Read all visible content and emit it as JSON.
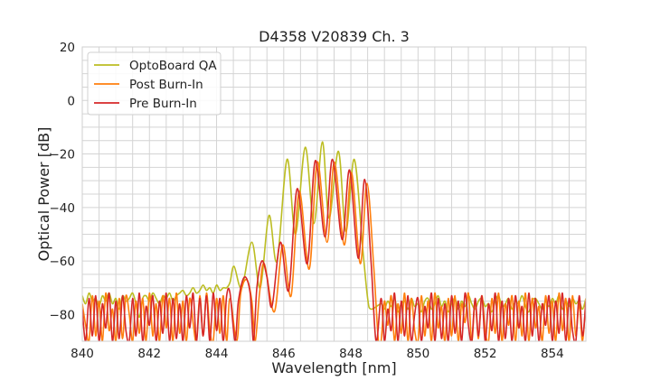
{
  "chart_data": {
    "type": "line",
    "title": "D4358 V20839 Ch. 3",
    "xlabel": "Wavelength [nm]",
    "ylabel": "Optical Power [dB]",
    "xlim": [
      840,
      855
    ],
    "ylim": [
      -90,
      20
    ],
    "xticks": [
      840,
      842,
      844,
      846,
      848,
      850,
      852,
      854
    ],
    "yticks": [
      20,
      0,
      -20,
      -40,
      -60,
      -80
    ],
    "xtick_labels": [
      "840",
      "842",
      "844",
      "846",
      "848",
      "850",
      "852",
      "854"
    ],
    "ytick_labels": [
      "20",
      "0",
      "−20",
      "−40",
      "−60",
      "−80"
    ],
    "grid": true,
    "minor_grid": true,
    "legend_position": "top-left",
    "x_noise_left": [
      840.0,
      840.1,
      840.2,
      840.3,
      840.4,
      840.5,
      840.6,
      840.7,
      840.8,
      840.9,
      841.0,
      841.1,
      841.2,
      841.3,
      841.4,
      841.5,
      841.6,
      841.7,
      841.8,
      841.9,
      842.0,
      842.1,
      842.2,
      842.3,
      842.4,
      842.5,
      842.6,
      842.7,
      842.8,
      842.9,
      843.0,
      843.1,
      843.2,
      843.3,
      843.4,
      843.5,
      843.6,
      843.7,
      843.8,
      843.9,
      844.0,
      844.1,
      844.2,
      844.3,
      844.4
    ],
    "x_noise_right": [
      848.9,
      849.0,
      849.1,
      849.2,
      849.3,
      849.4,
      849.5,
      849.6,
      849.7,
      849.8,
      849.9,
      850.0,
      850.1,
      850.2,
      850.3,
      850.4,
      850.5,
      850.6,
      850.7,
      850.8,
      850.9,
      851.0,
      851.1,
      851.2,
      851.3,
      851.4,
      851.5,
      851.6,
      851.7,
      851.8,
      851.9,
      852.0,
      852.1,
      852.2,
      852.3,
      852.4,
      852.5,
      852.6,
      852.7,
      852.8,
      852.9,
      853.0,
      853.1,
      853.2,
      853.3,
      853.4,
      853.5,
      853.6,
      853.7,
      853.8,
      853.9,
      854.0,
      854.1,
      854.2,
      854.3,
      854.4,
      854.5,
      854.6,
      854.7,
      854.8,
      854.9,
      855.0
    ],
    "series": [
      {
        "name": "OptoBoard QA",
        "color": "#bcbd22",
        "noise_left": [
          -73,
          -76,
          -72,
          -75,
          -74,
          -77,
          -73,
          -75,
          -72,
          -76,
          -74,
          -78,
          -73,
          -75,
          -74,
          -72,
          -76,
          -81,
          -74,
          -73,
          -75,
          -72,
          -74,
          -76,
          -73,
          -74,
          -72,
          -75,
          -73,
          -72,
          -71,
          -73,
          -72,
          -70,
          -72,
          -71,
          -69,
          -71,
          -70,
          -72,
          -69,
          -71,
          -70,
          -70,
          -68
        ],
        "lobes": [
          [
            844.52,
            -62
          ],
          [
            844.75,
            -70
          ],
          [
            845.05,
            -53
          ],
          [
            845.3,
            -70
          ],
          [
            845.56,
            -43
          ],
          [
            845.8,
            -60
          ],
          [
            846.1,
            -22
          ],
          [
            846.35,
            -50
          ],
          [
            846.64,
            -17.5
          ],
          [
            846.9,
            -46
          ],
          [
            847.15,
            -15.5
          ],
          [
            847.35,
            -44
          ],
          [
            847.63,
            -19
          ],
          [
            847.85,
            -49
          ],
          [
            848.1,
            -22
          ],
          [
            848.35,
            -55
          ],
          [
            848.5,
            -74
          ],
          [
            848.6,
            -78
          ]
        ],
        "noise_right": [
          -76,
          -78,
          -75,
          -77,
          -74,
          -79,
          -76,
          -75,
          -78,
          -74,
          -77,
          -76,
          -79,
          -75,
          -74,
          -78,
          -76,
          -73,
          -77,
          -75,
          -79,
          -76,
          -74,
          -78,
          -75,
          -77,
          -73,
          -76,
          -78,
          -75,
          -74,
          -77,
          -76,
          -79,
          -75,
          -73,
          -77,
          -76,
          -74,
          -78,
          -75,
          -76,
          -73,
          -77,
          -79,
          -75,
          -74,
          -76,
          -78,
          -75,
          -77,
          -74,
          -76,
          -73,
          -78,
          -75,
          -77,
          -74,
          -76,
          -75,
          -78,
          -74
        ]
      },
      {
        "name": "Post Burn-In",
        "color": "#ff7f0e",
        "noise_left": [
          -76,
          -84,
          -90,
          -73,
          -88,
          -75,
          -90,
          -72,
          -86,
          -78,
          -90,
          -74,
          -89,
          -73,
          -80,
          -90,
          -75,
          -87,
          -74,
          -90,
          -72,
          -88,
          -76,
          -90,
          -73,
          -85,
          -74,
          -90,
          -72,
          -87,
          -75,
          -90,
          -74,
          -83,
          -90,
          -73,
          -88,
          -72,
          -86,
          -90,
          -74,
          -87,
          -73,
          -90,
          -74
        ],
        "lobes": [
          [
            844.6,
            -90
          ],
          [
            844.72,
            -72
          ],
          [
            844.9,
            -67
          ],
          [
            845.05,
            -75
          ],
          [
            845.15,
            -90
          ],
          [
            845.28,
            -72
          ],
          [
            845.42,
            -61
          ],
          [
            845.72,
            -79
          ],
          [
            845.97,
            -54
          ],
          [
            846.22,
            -73
          ],
          [
            846.46,
            -34
          ],
          [
            846.76,
            -63
          ],
          [
            847.0,
            -23
          ],
          [
            847.29,
            -53
          ],
          [
            847.51,
            -23
          ],
          [
            847.8,
            -54
          ],
          [
            848.02,
            -27
          ],
          [
            848.28,
            -61
          ],
          [
            848.48,
            -31
          ],
          [
            848.68,
            -62
          ],
          [
            848.82,
            -90
          ]
        ],
        "noise_right": [
          -90,
          -75,
          -84,
          -73,
          -90,
          -76,
          -87,
          -72,
          -90,
          -74,
          -86,
          -90,
          -73,
          -88,
          -75,
          -90,
          -72,
          -85,
          -77,
          -90,
          -74,
          -88,
          -73,
          -90,
          -76,
          -83,
          -72,
          -90,
          -75,
          -89,
          -73,
          -86,
          -90,
          -74,
          -87,
          -72,
          -90,
          -76,
          -84,
          -73,
          -90,
          -75,
          -88,
          -72,
          -90,
          -74,
          -85,
          -77,
          -90,
          -73,
          -87,
          -75,
          -90,
          -72,
          -86,
          -74,
          -90,
          -73,
          -88,
          -76,
          -90,
          -74
        ]
      },
      {
        "name": "Pre Burn-In",
        "color": "#d62728",
        "noise_left": [
          -78,
          -90,
          -74,
          -88,
          -73,
          -90,
          -76,
          -85,
          -72,
          -90,
          -75,
          -89,
          -73,
          -86,
          -90,
          -74,
          -88,
          -72,
          -90,
          -77,
          -84,
          -73,
          -90,
          -75,
          -87,
          -72,
          -90,
          -74,
          -89,
          -76,
          -90,
          -73,
          -85,
          -72,
          -90,
          -74,
          -88,
          -73,
          -90,
          -72,
          -86,
          -74,
          -90,
          -73,
          -72
        ],
        "lobes": [
          [
            844.55,
            -90
          ],
          [
            844.65,
            -75
          ],
          [
            844.83,
            -66
          ],
          [
            845.0,
            -72
          ],
          [
            845.1,
            -90
          ],
          [
            845.2,
            -70
          ],
          [
            845.35,
            -60
          ],
          [
            845.5,
            -66
          ],
          [
            845.65,
            -77
          ],
          [
            845.9,
            -53
          ],
          [
            846.15,
            -71
          ],
          [
            846.4,
            -33
          ],
          [
            846.7,
            -61
          ],
          [
            846.94,
            -22.5
          ],
          [
            847.23,
            -51
          ],
          [
            847.45,
            -22
          ],
          [
            847.74,
            -52
          ],
          [
            847.96,
            -26
          ],
          [
            848.22,
            -59
          ],
          [
            848.41,
            -29.5
          ],
          [
            848.6,
            -60
          ],
          [
            848.75,
            -90
          ]
        ],
        "noise_right": [
          -74,
          -90,
          -78,
          -86,
          -72,
          -90,
          -75,
          -88,
          -73,
          -90,
          -80,
          -74,
          -90,
          -77,
          -85,
          -72,
          -90,
          -74,
          -89,
          -76,
          -90,
          -73,
          -87,
          -75,
          -90,
          -72,
          -84,
          -90,
          -74,
          -88,
          -73,
          -90,
          -76,
          -86,
          -72,
          -90,
          -75,
          -89,
          -74,
          -90,
          -73,
          -85,
          -77,
          -90,
          -72,
          -88,
          -74,
          -90,
          -76,
          -84,
          -73,
          -90,
          -75,
          -87,
          -72,
          -90,
          -74,
          -86,
          -90,
          -73,
          -88,
          -75
        ]
      }
    ]
  }
}
